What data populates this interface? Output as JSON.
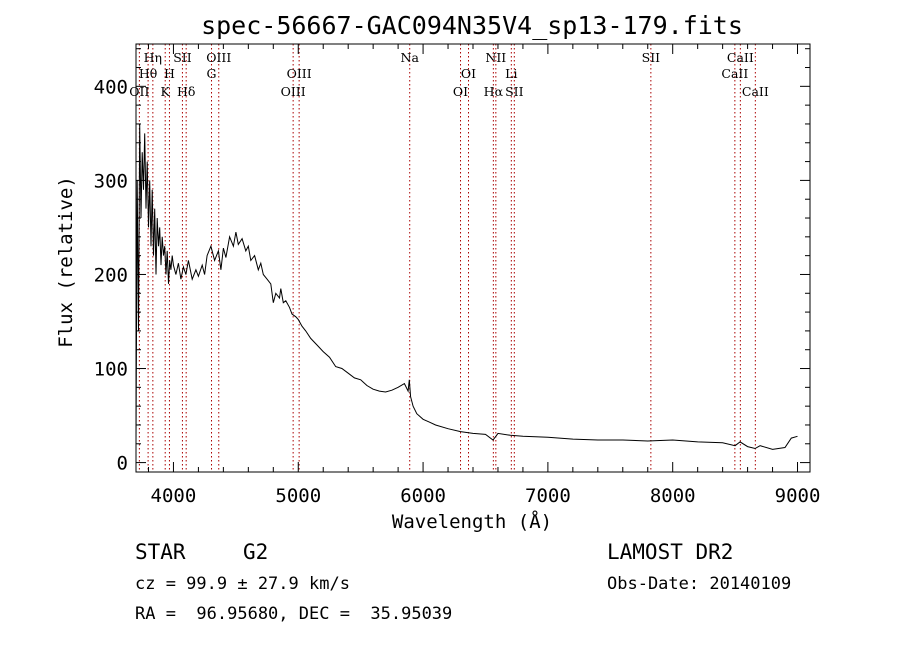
{
  "chart_data": {
    "type": "line",
    "title": "spec-56667-GAC094N35V4_sp13-179.fits",
    "xlabel": "Wavelength (Å)",
    "ylabel": "Flux (relative)",
    "xlim": [
      3700,
      9100
    ],
    "ylim": [
      -10,
      445
    ],
    "x_ticks": [
      4000,
      5000,
      6000,
      7000,
      8000,
      9000
    ],
    "y_ticks": [
      0,
      100,
      200,
      300,
      400
    ],
    "grid": false,
    "line_color": "#000000",
    "marker_color": "#aa0000",
    "series": [
      {
        "x": [
          3700,
          3710,
          3720,
          3730,
          3740,
          3750,
          3760,
          3770,
          3780,
          3790,
          3800,
          3810,
          3820,
          3830,
          3840,
          3850,
          3860,
          3870,
          3880,
          3890,
          3900,
          3910,
          3920,
          3930,
          3940,
          3950,
          3960,
          3970,
          3980,
          3990,
          4000,
          4020,
          4040,
          4060,
          4080,
          4100,
          4120,
          4150,
          4180,
          4200,
          4230,
          4250,
          4270,
          4300,
          4330,
          4360,
          4380,
          4400,
          4420,
          4450,
          4480,
          4500,
          4520,
          4550,
          4580,
          4600,
          4620,
          4650,
          4680,
          4700,
          4720,
          4750,
          4780,
          4800,
          4820,
          4850,
          4860,
          4880,
          4900,
          4930,
          4950,
          4980,
          5000,
          5030,
          5060,
          5100,
          5150,
          5200,
          5250,
          5300,
          5350,
          5400,
          5450,
          5500,
          5550,
          5600,
          5650,
          5700,
          5750,
          5800,
          5850,
          5880,
          5890,
          5900,
          5920,
          5950,
          6000,
          6050,
          6100,
          6200,
          6300,
          6400,
          6500,
          6560,
          6600,
          6700,
          6800,
          7000,
          7200,
          7400,
          7600,
          7800,
          8000,
          8200,
          8400,
          8500,
          8540,
          8600,
          8660,
          8700,
          8800,
          8900,
          8950,
          9000
        ],
        "y": [
          20,
          300,
          140,
          360,
          260,
          330,
          290,
          350,
          270,
          320,
          250,
          300,
          230,
          290,
          220,
          270,
          200,
          260,
          230,
          250,
          210,
          240,
          220,
          230,
          200,
          225,
          190,
          215,
          205,
          220,
          210,
          200,
          212,
          195,
          208,
          200,
          215,
          195,
          205,
          198,
          210,
          200,
          220,
          230,
          215,
          225,
          205,
          228,
          218,
          240,
          230,
          245,
          232,
          238,
          225,
          230,
          215,
          220,
          205,
          212,
          200,
          195,
          190,
          170,
          180,
          175,
          185,
          170,
          172,
          165,
          158,
          155,
          152,
          145,
          140,
          132,
          125,
          118,
          112,
          102,
          100,
          95,
          90,
          88,
          82,
          78,
          76,
          75,
          77,
          80,
          84,
          76,
          88,
          70,
          60,
          52,
          46,
          43,
          40,
          36,
          33,
          31,
          30,
          24,
          31,
          29,
          28,
          27,
          25,
          24,
          24,
          23,
          24,
          22,
          21,
          18,
          22,
          17,
          15,
          18,
          14,
          16,
          26,
          28
        ]
      }
    ],
    "annotations": [
      {
        "label": "Hη",
        "x": 3835,
        "row": 1
      },
      {
        "label": "Hθ",
        "x": 3797,
        "row": 2
      },
      {
        "label": "OII",
        "x": 3727,
        "row": 3
      },
      {
        "label": "H",
        "x": 3968,
        "row": 2
      },
      {
        "label": "K",
        "x": 3934,
        "row": 3
      },
      {
        "label": "SII",
        "x": 4072,
        "row": 1
      },
      {
        "label": "Hδ",
        "x": 4102,
        "row": 3
      },
      {
        "label": "OIII",
        "x": 4363,
        "row": 1
      },
      {
        "label": "G",
        "x": 4305,
        "row": 2
      },
      {
        "label": "OIII",
        "x": 5007,
        "row": 2
      },
      {
        "label": "OIII",
        "x": 4959,
        "row": 3
      },
      {
        "label": "Na",
        "x": 5893,
        "row": 1
      },
      {
        "label": "OI",
        "x": 6364,
        "row": 2
      },
      {
        "label": "OI",
        "x": 6300,
        "row": 3
      },
      {
        "label": "NII",
        "x": 6583,
        "row": 1
      },
      {
        "label": "Hα",
        "x": 6563,
        "row": 3
      },
      {
        "label": "Li",
        "x": 6707,
        "row": 2
      },
      {
        "label": "SII",
        "x": 6731,
        "row": 3
      },
      {
        "label": "SII",
        "x": 7825,
        "row": 1
      },
      {
        "label": "CaII",
        "x": 8542,
        "row": 1
      },
      {
        "label": "CaII",
        "x": 8498,
        "row": 2
      },
      {
        "label": "CaII",
        "x": 8662,
        "row": 3
      }
    ]
  },
  "info": {
    "object_class": "STAR",
    "subclass": "G2",
    "survey": "LAMOST DR2",
    "cz": "cz = 99.9 ± 27.9 km/s",
    "obs_date": "Obs-Date: 20140109",
    "coords": "RA =  96.95680, DEC =  35.95039"
  }
}
